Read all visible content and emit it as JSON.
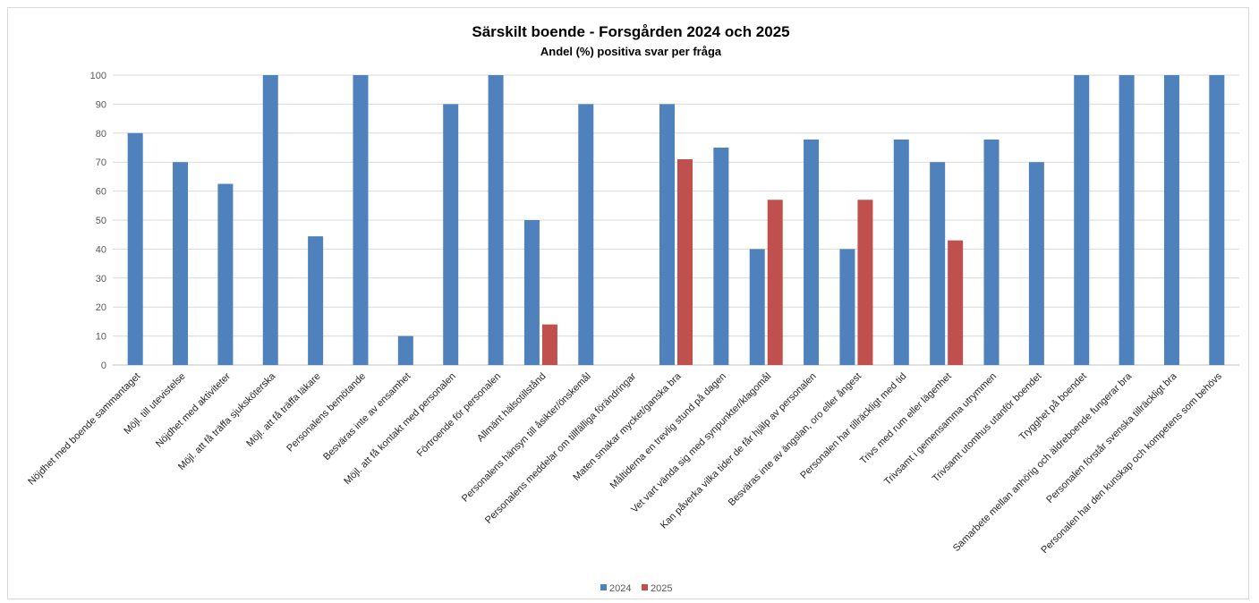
{
  "chart_data": {
    "type": "bar",
    "title": "Särskilt boende - Forsgården 2024 och 2025",
    "subtitle": "Andel (%) positiva svar per fråga",
    "ylim": [
      0,
      100
    ],
    "yticks": [
      0,
      10,
      20,
      30,
      40,
      50,
      60,
      70,
      80,
      90,
      100
    ],
    "grid": true,
    "legend_position": "bottom",
    "categories": [
      "Nöjdhet med boende sammantaget",
      "Möjl. till utevistelse",
      "Nöjdhet med aktiviteter",
      "Möjl. att få träffa sjuksköterska",
      "Möjl. att få träffa läkare",
      "Personalens bemötande",
      "Besväras inte av ensamhet",
      "Möjl. att få kontakt med personalen",
      "Förtroende för personalen",
      "Allmänt hälsotillstånd",
      "Personalens hänsyn till åsikter/önskemål",
      "Personalens meddelar om tillfälliga förändringar",
      "Maten smakar mycket/ganska bra",
      "Måltiderna en trevlig stund på dagen",
      "Vet vart vända sig med synpunkter/klagomål",
      "Kan påverka vilka tider de får hjälp av personalen",
      "Besväras inte av ängslan, oro eller ångest",
      "Personalen har tillräckligt med tid",
      "Trivs med rum eller lägenhet",
      "Trivsamt i gemensamma utrymmen",
      "Trivsamt utomhus utanför boendet",
      "Trygghet på boendet",
      "Samarbete mellan anhörig och äldreboende fungerar bra",
      "Personalen förstår svenska tillräckligt bra",
      "Personalen har den kunskap och kompetens som behövs"
    ],
    "series": [
      {
        "name": "2024",
        "color": "#4f81bd",
        "values": [
          80,
          70,
          62.5,
          100,
          44.4,
          100,
          10,
          90,
          100,
          50,
          90,
          null,
          90,
          75,
          40,
          77.8,
          40,
          77.8,
          70,
          77.8,
          70,
          100,
          100,
          100,
          100
        ]
      },
      {
        "name": "2025",
        "color": "#c0504d",
        "values": [
          null,
          null,
          null,
          null,
          null,
          null,
          null,
          null,
          null,
          14,
          null,
          null,
          71,
          null,
          57,
          null,
          57,
          null,
          43,
          null,
          null,
          null,
          null,
          null,
          null
        ]
      }
    ]
  }
}
